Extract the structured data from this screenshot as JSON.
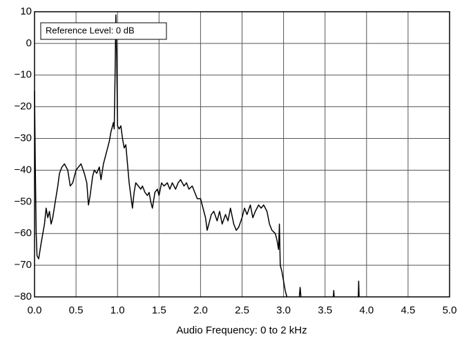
{
  "chart_data": {
    "type": "line",
    "x_label": "Audio Frequency: 0 to 2 kHz",
    "annotation": "Reference Level: 0 dB",
    "xlim": [
      0,
      5
    ],
    "ylim": [
      -80,
      10
    ],
    "xticks": [
      {
        "value": 0,
        "label": "0.0"
      },
      0.5,
      {
        "value": 1,
        "label": "1.0"
      },
      1.5,
      {
        "value": 2,
        "label": "2.0"
      },
      2.5,
      {
        "value": 3,
        "label": "3.0"
      },
      3.5,
      {
        "value": 4,
        "label": "4.0"
      },
      4.5,
      {
        "value": 5,
        "label": "5.0"
      }
    ],
    "yticks": [
      {
        "value": -80,
        "label": "−80"
      },
      {
        "value": -70,
        "label": "−70"
      },
      {
        "value": -60,
        "label": "−60"
      },
      {
        "value": -50,
        "label": "−50"
      },
      {
        "value": -40,
        "label": "−40"
      },
      {
        "value": -30,
        "label": "−30"
      },
      {
        "value": -20,
        "label": "−20"
      },
      {
        "value": -10,
        "label": "−10"
      },
      0,
      10
    ],
    "grid": true,
    "series": [
      {
        "color": "#000000",
        "x": [
          0,
          0.01,
          0.02,
          0.03,
          0.05,
          0.08,
          0.1,
          0.12,
          0.14,
          0.16,
          0.18,
          0.2,
          0.22,
          0.25,
          0.28,
          0.3,
          0.33,
          0.36,
          0.4,
          0.43,
          0.46,
          0.5,
          0.53,
          0.56,
          0.6,
          0.63,
          0.65,
          0.67,
          0.7,
          0.72,
          0.75,
          0.78,
          0.8,
          0.83,
          0.86,
          0.88,
          0.9,
          0.92,
          0.94,
          0.95,
          0.96,
          0.97,
          0.98,
          0.99,
          1.0,
          1.02,
          1.04,
          1.06,
          1.08,
          1.1,
          1.12,
          1.14,
          1.16,
          1.18,
          1.2,
          1.22,
          1.25,
          1.28,
          1.3,
          1.33,
          1.36,
          1.38,
          1.4,
          1.42,
          1.45,
          1.48,
          1.5,
          1.53,
          1.56,
          1.6,
          1.63,
          1.66,
          1.7,
          1.73,
          1.76,
          1.8,
          1.83,
          1.86,
          1.9,
          1.93,
          1.96,
          2.0,
          2.03,
          2.06,
          2.08,
          2.1,
          2.13,
          2.16,
          2.2,
          2.23,
          2.26,
          2.3,
          2.33,
          2.36,
          2.4,
          2.43,
          2.46,
          2.5,
          2.53,
          2.56,
          2.6,
          2.63,
          2.66,
          2.7,
          2.73,
          2.76,
          2.8,
          2.83,
          2.86,
          2.9,
          2.92,
          2.94,
          2.95,
          2.96,
          2.98,
          3.0,
          3.02,
          3.04,
          3.1,
          3.19,
          3.2,
          3.21,
          3.4,
          3.6,
          3.605,
          3.61,
          3.8,
          3.9,
          3.905,
          3.91
        ],
        "values": [
          -15,
          -40,
          -60,
          -67,
          -68,
          -63,
          -60,
          -57,
          -52,
          -55,
          -53,
          -57,
          -55,
          -50,
          -45,
          -41,
          -39,
          -38,
          -40,
          -45,
          -44,
          -40,
          -39,
          -38,
          -41,
          -44,
          -51,
          -48,
          -42,
          -40,
          -41,
          -39,
          -43,
          -38,
          -35,
          -33,
          -31,
          -28,
          -26,
          -25,
          -27,
          -10,
          9,
          -5,
          -26,
          -27,
          -26,
          -30,
          -33,
          -32,
          -38,
          -44,
          -48,
          -52,
          -47,
          -44,
          -45,
          -46,
          -45,
          -47,
          -48,
          -47,
          -50,
          -52,
          -47,
          -46,
          -48,
          -44,
          -45,
          -44,
          -46,
          -44,
          -46,
          -44,
          -43,
          -45,
          -44,
          -46,
          -45,
          -47,
          -49,
          -49,
          -52,
          -55,
          -59,
          -57,
          -54,
          -53,
          -56,
          -53,
          -57,
          -54,
          -56,
          -52,
          -57,
          -59,
          -58,
          -55,
          -52,
          -54,
          -51,
          -55,
          -53,
          -51,
          -52,
          -51,
          -53,
          -57,
          -59,
          -60,
          -62,
          -65,
          -57,
          -70,
          -72,
          -75,
          -78,
          -80,
          null,
          -80,
          -77,
          -80,
          null,
          -80,
          -78,
          -80,
          null,
          -80,
          -75,
          -80
        ]
      }
    ]
  }
}
